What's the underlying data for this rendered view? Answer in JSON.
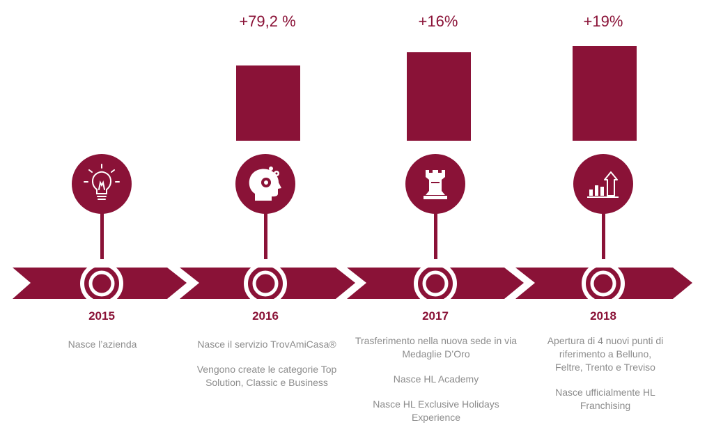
{
  "accent_color": "#8a1237",
  "text_color": "#8c8c8c",
  "chart_data": {
    "type": "bar",
    "categories": [
      "2016",
      "2017",
      "2018"
    ],
    "values": [
      79.2,
      16,
      19
    ],
    "value_labels": [
      "+79,2 %",
      "+16%",
      "+19%"
    ]
  },
  "milestones": [
    {
      "year": "2015",
      "icon": "lightbulb-icon",
      "items": [
        "Nasce l’azienda"
      ]
    },
    {
      "year": "2016",
      "icon": "head-gears-icon",
      "items": [
        "Nasce il servizio TrovAmiCasa®",
        "Vengono create le categorie Top Solution, Classic e Business"
      ]
    },
    {
      "year": "2017",
      "icon": "chess-rook-icon",
      "items": [
        "Trasferimento nella nuova sede in via Medaglie D’Oro",
        "Nasce HL Academy",
        "Nasce HL Exclusive Holidays Experience"
      ]
    },
    {
      "year": "2018",
      "icon": "growth-chart-icon",
      "items": [
        "Apertura di 4 nuovi punti di riferimento a Belluno, Feltre, Trento e Treviso",
        "Nasce ufficialmente HL Franchising"
      ]
    }
  ]
}
